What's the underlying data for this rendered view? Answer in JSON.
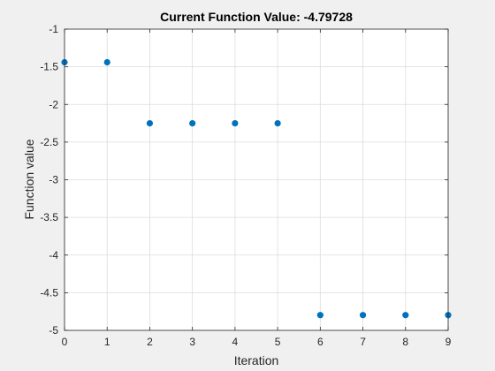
{
  "chart_data": {
    "type": "scatter",
    "title": "Current Function Value: -4.79728",
    "xlabel": "Iteration",
    "ylabel": "Function value",
    "xlim": [
      0,
      9
    ],
    "ylim": [
      -5,
      -1
    ],
    "xticks": [
      0,
      1,
      2,
      3,
      4,
      5,
      6,
      7,
      8,
      9
    ],
    "yticks": [
      -1,
      -1.5,
      -2,
      -2.5,
      -3,
      -3.5,
      -4,
      -4.5,
      -5
    ],
    "grid": true,
    "marker_color": "#0072bd",
    "series": [
      {
        "x": [
          0,
          1,
          2,
          3,
          4,
          5,
          6,
          7,
          8,
          9
        ],
        "y": [
          -1.44,
          -1.44,
          -2.25,
          -2.25,
          -2.25,
          -2.25,
          -4.79728,
          -4.79728,
          -4.79728,
          -4.79728
        ]
      }
    ]
  }
}
